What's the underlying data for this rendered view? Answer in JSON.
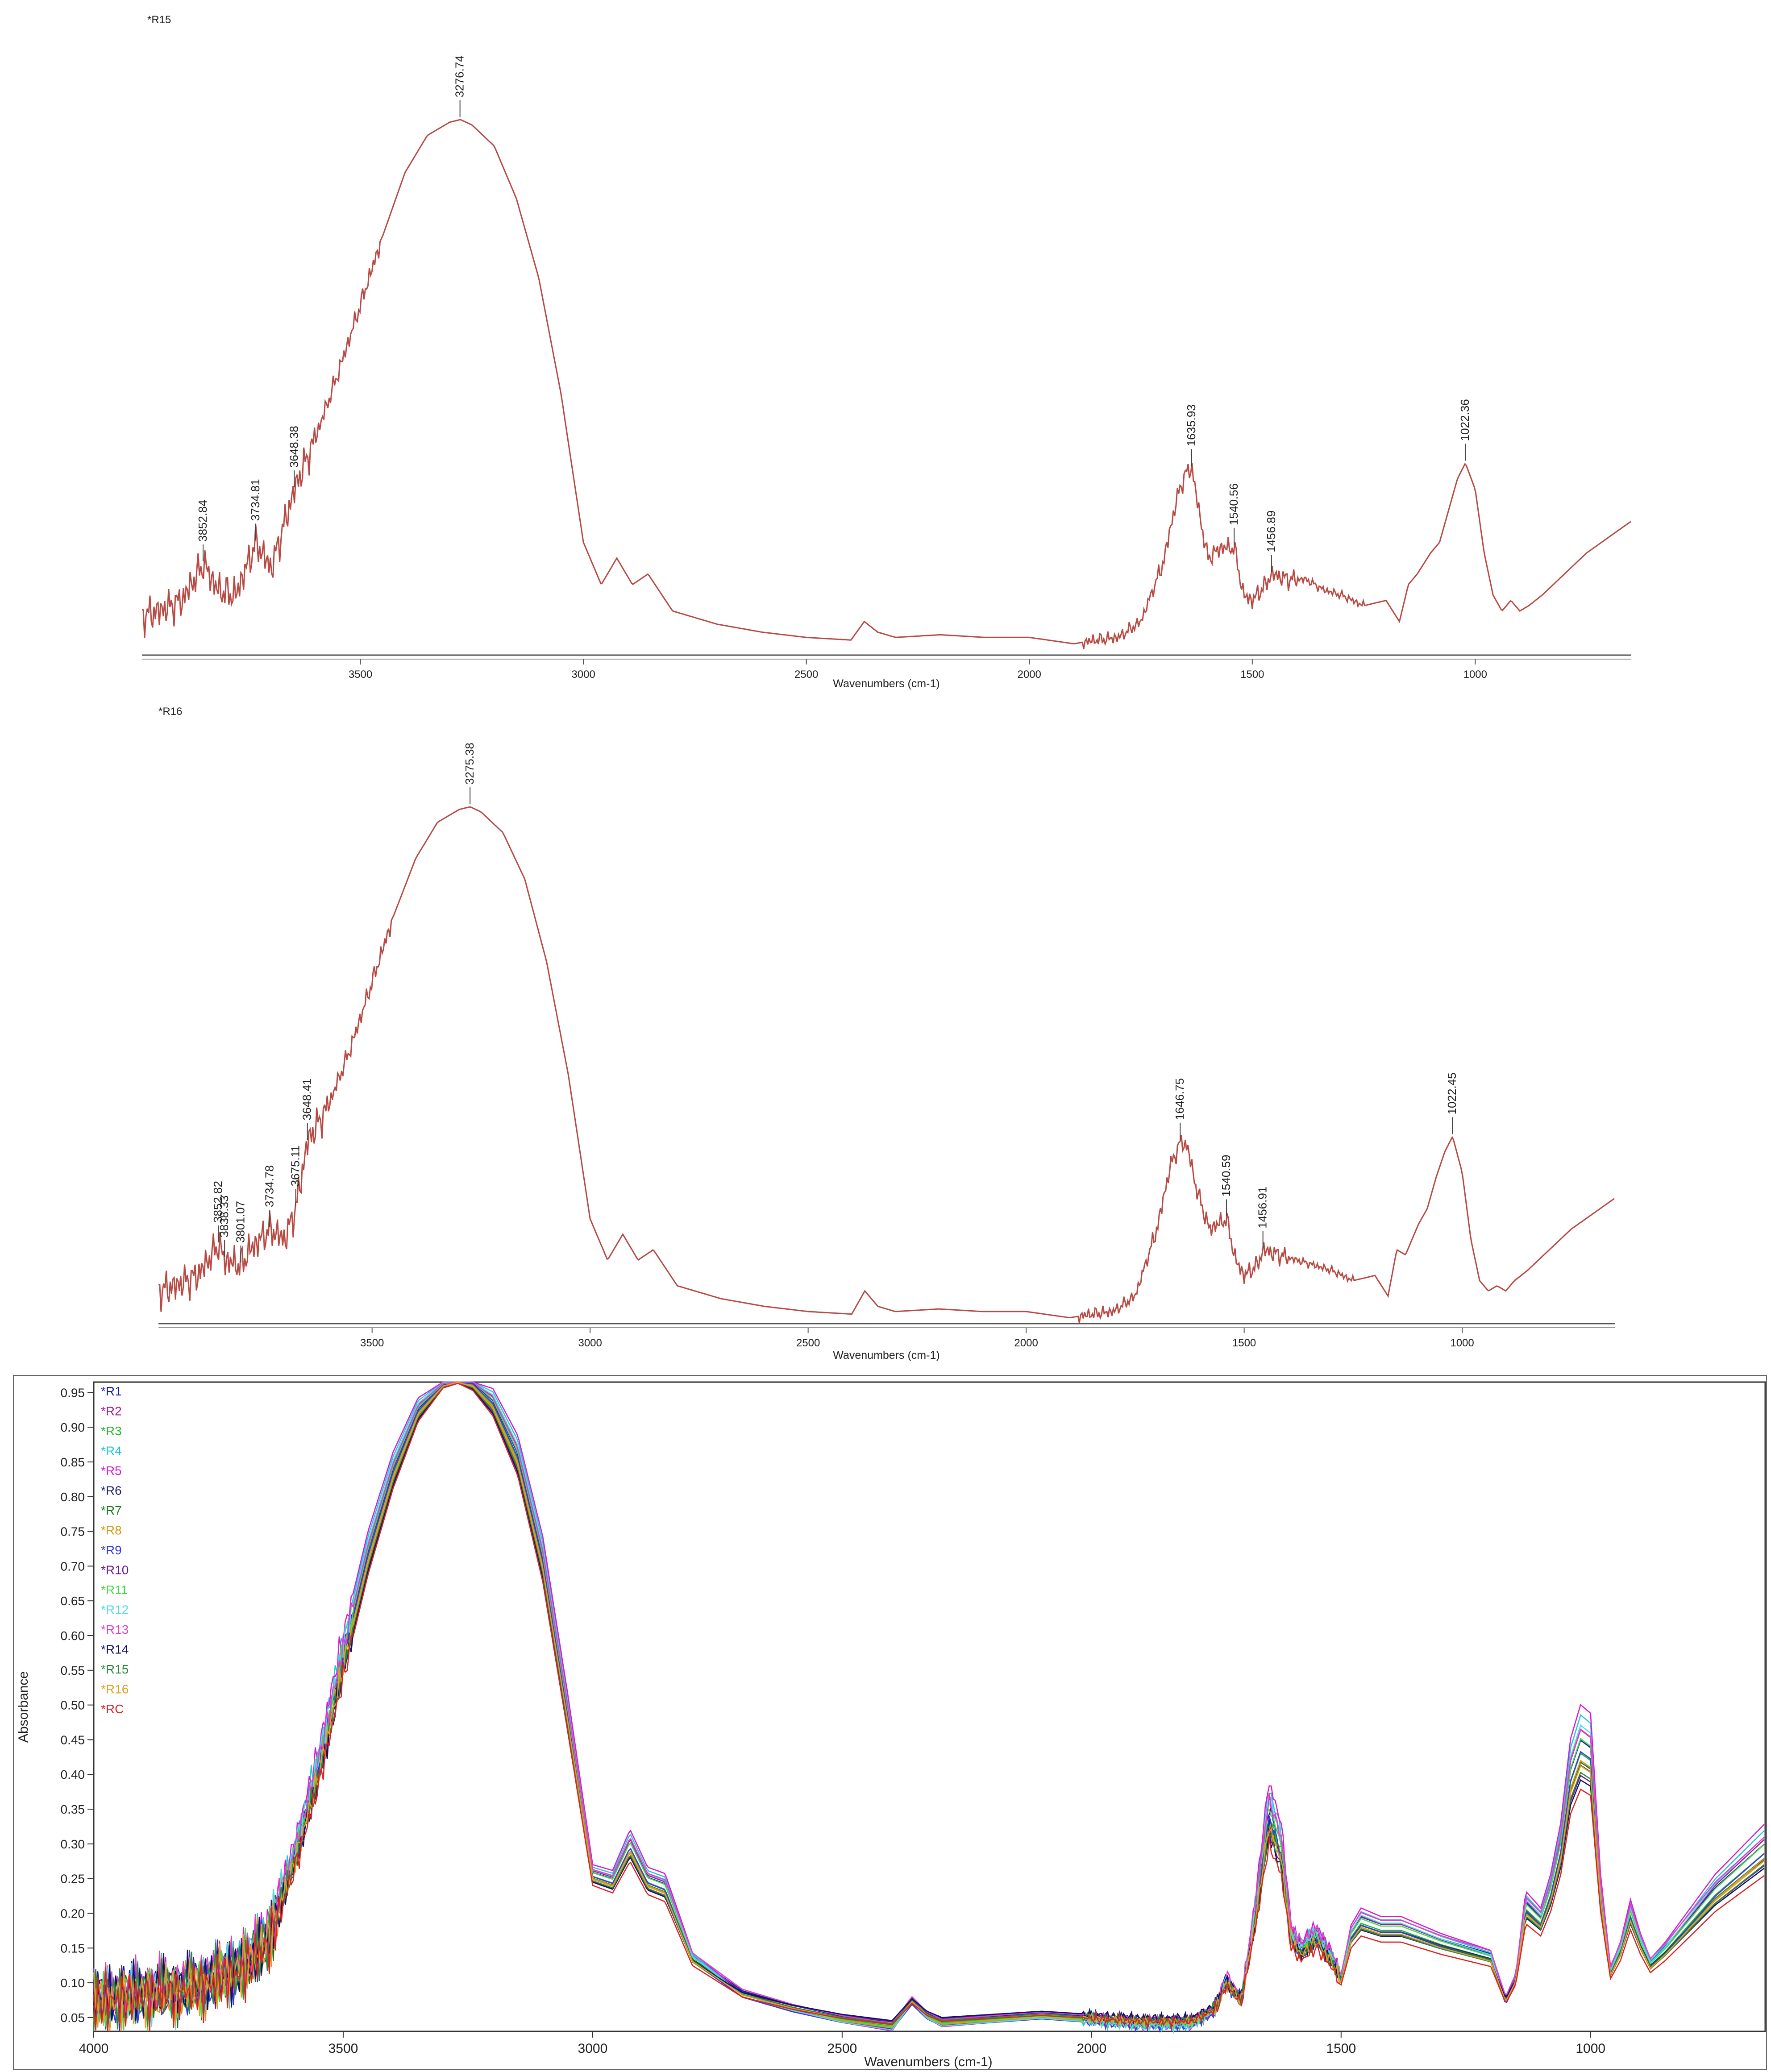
{
  "chart_data": [
    {
      "type": "line",
      "title": "*R15",
      "xlabel": "Wavenumbers (cm-1)",
      "ylabel": "",
      "xlim": [
        3990,
        650
      ],
      "ylim": [
        0,
        1
      ],
      "xticks": [
        "3500",
        "3000",
        "2500",
        "2000",
        "1500",
        "1000"
      ],
      "line_color": "#b84a44",
      "series": [
        {
          "name": "*R15",
          "x": [
            3990,
            3950,
            3900,
            3852,
            3820,
            3780,
            3734,
            3700,
            3648,
            3600,
            3550,
            3500,
            3450,
            3400,
            3350,
            3300,
            3276,
            3250,
            3200,
            3150,
            3100,
            3050,
            3000,
            2960,
            2925,
            2890,
            2855,
            2800,
            2700,
            2600,
            2500,
            2400,
            2370,
            2340,
            2300,
            2200,
            2100,
            2000,
            1900,
            1850,
            1800,
            1750,
            1700,
            1670,
            1650,
            1635,
            1620,
            1600,
            1570,
            1540,
            1520,
            1500,
            1470,
            1456,
            1420,
            1380,
            1340,
            1300,
            1250,
            1200,
            1170,
            1150,
            1130,
            1100,
            1080,
            1060,
            1040,
            1022,
            1000,
            980,
            960,
            940,
            920,
            900,
            880,
            850,
            800,
            750,
            700,
            650
          ],
          "y": [
            0.06,
            0.07,
            0.09,
            0.16,
            0.11,
            0.1,
            0.2,
            0.15,
            0.3,
            0.4,
            0.52,
            0.65,
            0.78,
            0.9,
            0.97,
            0.995,
            1.0,
            0.99,
            0.95,
            0.85,
            0.7,
            0.48,
            0.2,
            0.12,
            0.17,
            0.12,
            0.14,
            0.07,
            0.045,
            0.03,
            0.02,
            0.015,
            0.05,
            0.03,
            0.02,
            0.025,
            0.02,
            0.02,
            0.008,
            0.015,
            0.02,
            0.05,
            0.16,
            0.28,
            0.33,
            0.34,
            0.26,
            0.17,
            0.19,
            0.19,
            0.1,
            0.09,
            0.12,
            0.14,
            0.13,
            0.13,
            0.11,
            0.1,
            0.08,
            0.09,
            0.05,
            0.12,
            0.14,
            0.18,
            0.2,
            0.26,
            0.32,
            0.35,
            0.3,
            0.18,
            0.1,
            0.07,
            0.09,
            0.07,
            0.08,
            0.1,
            0.14,
            0.18,
            0.21,
            0.24
          ]
        }
      ],
      "annotations": [
        {
          "x": 3852.84,
          "label": "3852.84"
        },
        {
          "x": 3734.81,
          "label": "3734.81"
        },
        {
          "x": 3648.38,
          "label": "3648.38"
        },
        {
          "x": 3276.74,
          "label": "3276.74"
        },
        {
          "x": 1635.93,
          "label": "1635.93"
        },
        {
          "x": 1540.56,
          "label": "1540.56"
        },
        {
          "x": 1456.89,
          "label": "1456.89"
        },
        {
          "x": 1022.36,
          "label": "1022.36"
        }
      ]
    },
    {
      "type": "line",
      "title": "*R16",
      "xlabel": "Wavenumbers (cm-1)",
      "ylabel": "",
      "xlim": [
        3990,
        650
      ],
      "ylim": [
        0,
        1
      ],
      "xticks": [
        "3500",
        "3000",
        "2500",
        "2000",
        "1500",
        "1000"
      ],
      "line_color": "#b84a44",
      "series": [
        {
          "name": "*R16",
          "x": [
            3990,
            3950,
            3900,
            3852,
            3838,
            3801,
            3780,
            3734,
            3700,
            3675,
            3648,
            3600,
            3550,
            3500,
            3450,
            3400,
            3350,
            3300,
            3275,
            3250,
            3200,
            3150,
            3100,
            3050,
            3000,
            2960,
            2925,
            2890,
            2855,
            2800,
            2700,
            2600,
            2500,
            2400,
            2370,
            2340,
            2300,
            2200,
            2100,
            2000,
            1900,
            1850,
            1800,
            1750,
            1700,
            1670,
            1646,
            1630,
            1610,
            1580,
            1540,
            1520,
            1500,
            1470,
            1456,
            1420,
            1380,
            1340,
            1300,
            1250,
            1200,
            1170,
            1150,
            1130,
            1100,
            1080,
            1060,
            1040,
            1022,
            1000,
            980,
            960,
            940,
            920,
            900,
            880,
            850,
            800,
            750,
            700,
            650
          ],
          "y": [
            0.06,
            0.07,
            0.09,
            0.15,
            0.12,
            0.11,
            0.14,
            0.18,
            0.16,
            0.22,
            0.35,
            0.42,
            0.53,
            0.66,
            0.79,
            0.9,
            0.97,
            0.995,
            1.0,
            0.99,
            0.95,
            0.86,
            0.7,
            0.48,
            0.2,
            0.12,
            0.17,
            0.12,
            0.14,
            0.07,
            0.045,
            0.03,
            0.02,
            0.015,
            0.06,
            0.03,
            0.02,
            0.025,
            0.02,
            0.02,
            0.008,
            0.015,
            0.02,
            0.05,
            0.18,
            0.3,
            0.35,
            0.34,
            0.26,
            0.18,
            0.2,
            0.12,
            0.09,
            0.11,
            0.14,
            0.13,
            0.12,
            0.11,
            0.1,
            0.08,
            0.09,
            0.05,
            0.14,
            0.13,
            0.19,
            0.22,
            0.28,
            0.33,
            0.36,
            0.29,
            0.16,
            0.08,
            0.06,
            0.07,
            0.06,
            0.08,
            0.1,
            0.14,
            0.18,
            0.21,
            0.24
          ]
        }
      ],
      "annotations": [
        {
          "x": 3852.82,
          "label": "3852.82"
        },
        {
          "x": 3838.33,
          "label": "3838.33"
        },
        {
          "x": 3801.07,
          "label": "3801.07"
        },
        {
          "x": 3734.78,
          "label": "3734.78"
        },
        {
          "x": 3675.11,
          "label": "3675.11"
        },
        {
          "x": 3648.41,
          "label": "3648.41"
        },
        {
          "x": 3275.38,
          "label": "3275.38"
        },
        {
          "x": 1646.75,
          "label": "1646.75"
        },
        {
          "x": 1540.59,
          "label": "1540.59"
        },
        {
          "x": 1456.91,
          "label": "1456.91"
        },
        {
          "x": 1022.45,
          "label": "1022.45"
        }
      ]
    },
    {
      "type": "line",
      "title": "",
      "xlabel": "Wavenumbers (cm-1)",
      "ylabel": "Absorbance",
      "xlim": [
        4000,
        650
      ],
      "ylim": [
        0.03,
        0.965
      ],
      "xticks": [
        "4000",
        "3500",
        "3000",
        "2500",
        "2000",
        "1500",
        "1000"
      ],
      "yticks": [
        "0.05",
        "0.10",
        "0.15",
        "0.20",
        "0.25",
        "0.30",
        "0.35",
        "0.40",
        "0.45",
        "0.50",
        "0.55",
        "0.60",
        "0.65",
        "0.70",
        "0.75",
        "0.80",
        "0.85",
        "0.90",
        "0.95"
      ],
      "base_shape": {
        "x": [
          4000,
          3900,
          3800,
          3700,
          3650,
          3600,
          3550,
          3500,
          3450,
          3400,
          3350,
          3300,
          3270,
          3240,
          3200,
          3150,
          3100,
          3050,
          3000,
          2960,
          2925,
          2890,
          2855,
          2800,
          2700,
          2600,
          2500,
          2400,
          2360,
          2330,
          2300,
          2200,
          2100,
          2000,
          1900,
          1800,
          1750,
          1730,
          1700,
          1670,
          1645,
          1620,
          1600,
          1580,
          1550,
          1520,
          1500,
          1480,
          1460,
          1420,
          1380,
          1340,
          1300,
          1250,
          1200,
          1170,
          1150,
          1130,
          1100,
          1080,
          1060,
          1040,
          1020,
          1000,
          980,
          960,
          940,
          920,
          900,
          880,
          850,
          800,
          750,
          700,
          650
        ],
        "y": [
          0.07,
          0.08,
          0.09,
          0.12,
          0.16,
          0.27,
          0.4,
          0.56,
          0.71,
          0.83,
          0.92,
          0.96,
          0.965,
          0.96,
          0.93,
          0.85,
          0.7,
          0.48,
          0.25,
          0.24,
          0.29,
          0.24,
          0.23,
          0.13,
          0.08,
          0.06,
          0.045,
          0.035,
          0.07,
          0.05,
          0.04,
          0.045,
          0.05,
          0.045,
          0.04,
          0.04,
          0.06,
          0.1,
          0.07,
          0.2,
          0.33,
          0.28,
          0.16,
          0.14,
          0.16,
          0.13,
          0.1,
          0.16,
          0.18,
          0.17,
          0.17,
          0.16,
          0.15,
          0.14,
          0.13,
          0.07,
          0.1,
          0.2,
          0.18,
          0.22,
          0.28,
          0.38,
          0.42,
          0.41,
          0.22,
          0.11,
          0.14,
          0.19,
          0.15,
          0.12,
          0.14,
          0.18,
          0.22,
          0.25,
          0.28
        ]
      },
      "series": [
        {
          "name": "*R1",
          "color": "#1a1aa8",
          "scale": 1.06,
          "offset": 0.004
        },
        {
          "name": "*R2",
          "color": "#a01aa0",
          "scale": 1.12,
          "offset": -0.006
        },
        {
          "name": "*R3",
          "color": "#22bb22",
          "scale": 1.02,
          "offset": 0.002
        },
        {
          "name": "*R4",
          "color": "#22c8d8",
          "scale": 1.18,
          "offset": -0.01
        },
        {
          "name": "*R5",
          "color": "#d81ad8",
          "scale": 1.22,
          "offset": -0.012
        },
        {
          "name": "*R6",
          "color": "#202078",
          "scale": 0.96,
          "offset": 0.01
        },
        {
          "name": "*R7",
          "color": "#1a7a1a",
          "scale": 0.98,
          "offset": 0.006
        },
        {
          "name": "*R8",
          "color": "#d49a1a",
          "scale": 1.0,
          "offset": 0.0
        },
        {
          "name": "*R9",
          "color": "#3a3ae0",
          "scale": 1.04,
          "offset": -0.004
        },
        {
          "name": "*R10",
          "color": "#6a1a9a",
          "scale": 0.92,
          "offset": 0.012
        },
        {
          "name": "*R11",
          "color": "#44dd44",
          "scale": 1.08,
          "offset": -0.002
        },
        {
          "name": "*R12",
          "color": "#55d8e8",
          "scale": 1.14,
          "offset": -0.008
        },
        {
          "name": "*R13",
          "color": "#e040c8",
          "scale": 1.1,
          "offset": 0.003
        },
        {
          "name": "*R14",
          "color": "#10106a",
          "scale": 0.9,
          "offset": 0.014
        },
        {
          "name": "*R15",
          "color": "#2a8a3a",
          "scale": 0.94,
          "offset": 0.008
        },
        {
          "name": "*R16",
          "color": "#e0a020",
          "scale": 0.97,
          "offset": 0.005
        },
        {
          "name": "*RC",
          "color": "#dd2222",
          "scale": 0.88,
          "offset": 0.009
        }
      ]
    }
  ]
}
